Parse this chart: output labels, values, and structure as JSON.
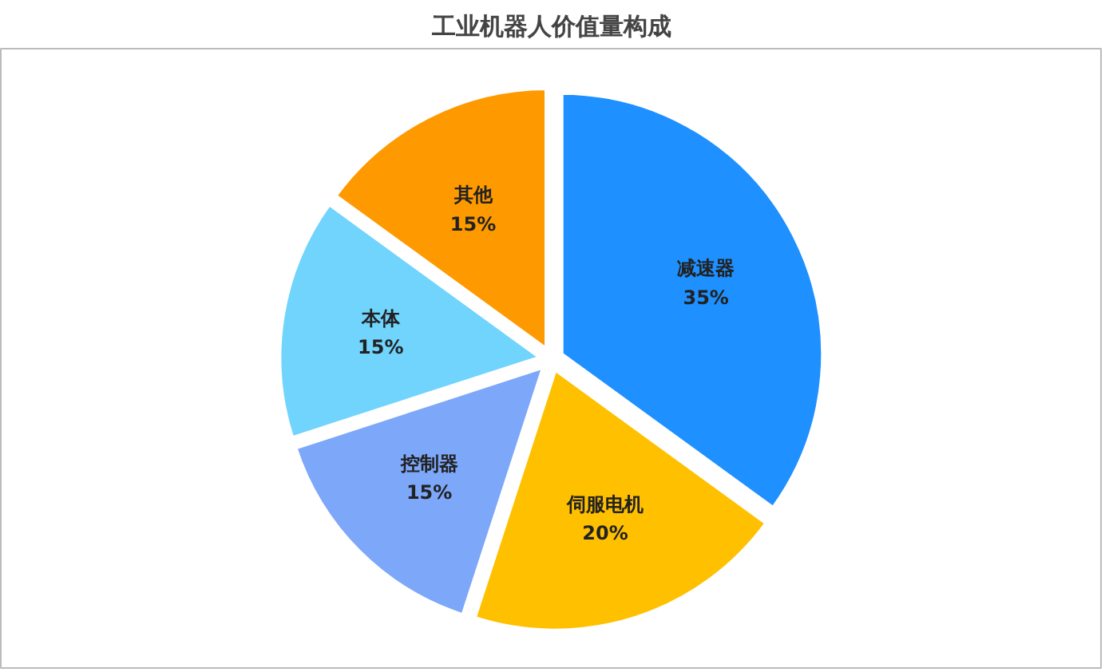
{
  "chart_data": {
    "type": "pie",
    "title": "工业机器人价值量构成",
    "categories": [
      "减速器",
      "伺服电机",
      "控制器",
      "本体",
      "其他"
    ],
    "values": [
      35,
      20,
      15,
      15,
      15
    ],
    "value_labels": [
      "35%",
      "20%",
      "15%",
      "15%",
      "15%"
    ],
    "colors": [
      "#1e90ff",
      "#ffc000",
      "#7da7f9",
      "#70d4fd",
      "#ff9900"
    ]
  }
}
